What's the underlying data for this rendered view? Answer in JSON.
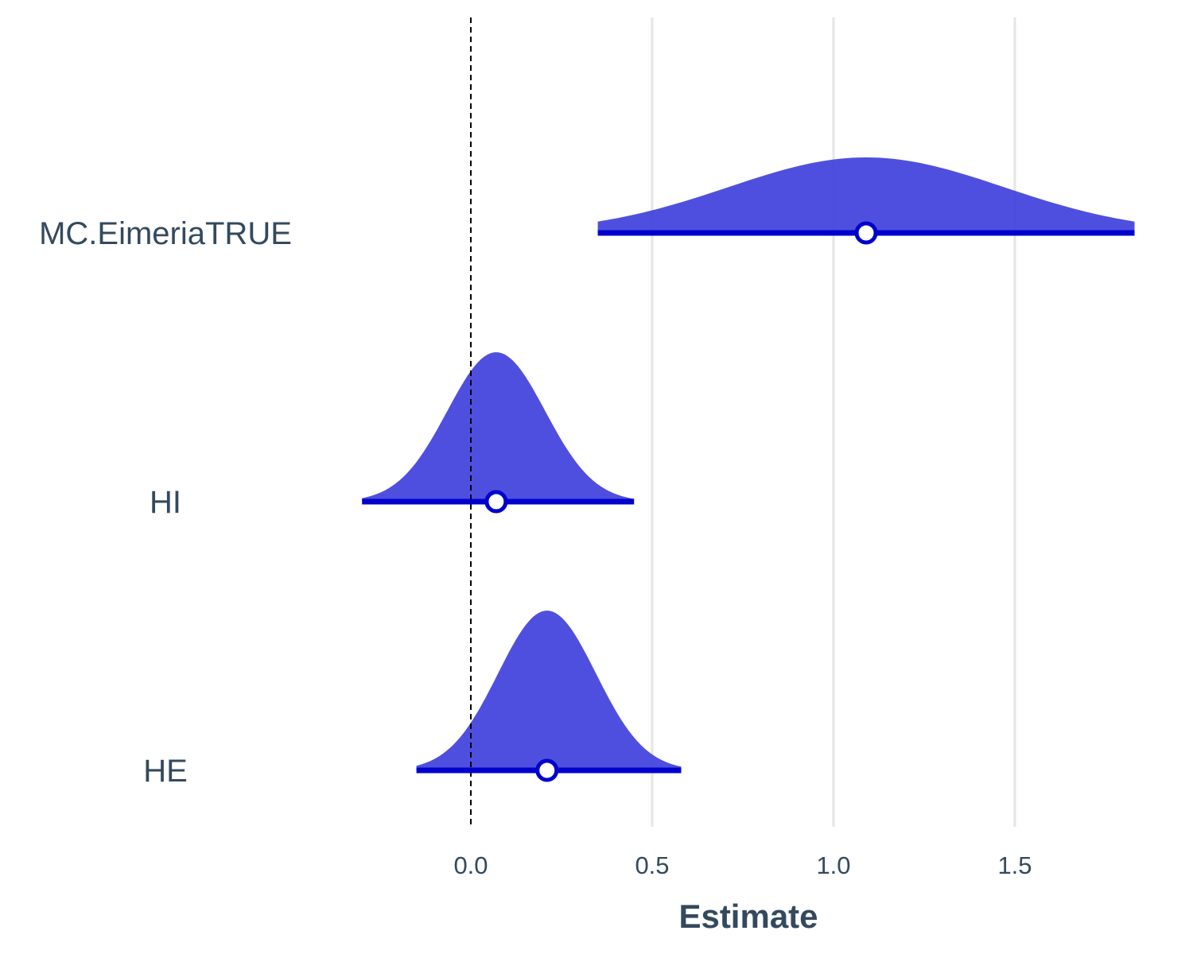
{
  "chart_data": {
    "type": "area",
    "title": "",
    "xlabel": "Estimate",
    "ylabel": "",
    "xlim": [
      -0.33,
      1.85
    ],
    "x_ticks": [
      0.0,
      0.5,
      1.0,
      1.5
    ],
    "x_tick_labels": [
      "0.0",
      "0.5",
      "1.0",
      "1.5"
    ],
    "reference_line": 0,
    "grid": "vertical major gridlines only",
    "legend": "none",
    "colors": {
      "fill": "#3c3cdc",
      "interval": "#0000cd",
      "point_fill": "#ffffff",
      "reference_line": "#000000",
      "grid": "#e5e5e5",
      "text": "#34495e"
    },
    "series": [
      {
        "name": "MC.EimeriaTRUE",
        "estimate": 1.09,
        "interval": [
          0.35,
          1.83
        ],
        "sd": 0.38
      },
      {
        "name": "HI",
        "estimate": 0.07,
        "interval": [
          -0.3,
          0.45
        ],
        "sd": 0.135
      },
      {
        "name": "HE",
        "estimate": 0.21,
        "interval": [
          -0.15,
          0.58
        ],
        "sd": 0.135
      }
    ]
  }
}
